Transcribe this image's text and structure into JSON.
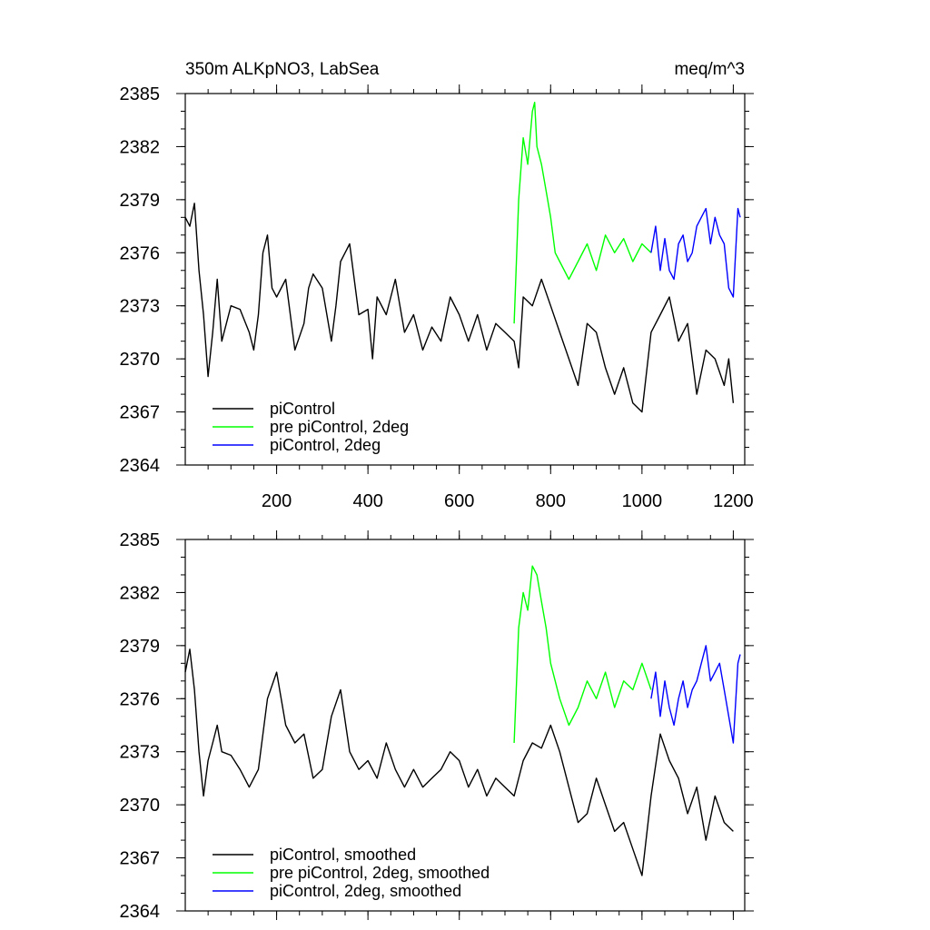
{
  "chart_data": [
    {
      "type": "line",
      "title": "350m ALKpNO3, LabSea",
      "units": "meq/m^3",
      "xlim": [
        0,
        1225
      ],
      "ylim": [
        2364,
        2385
      ],
      "xticks": [
        200,
        400,
        600,
        800,
        1000,
        1200
      ],
      "xtick_labels": [
        "200",
        "400",
        "600",
        "800",
        "1000",
        "1200"
      ],
      "yticks": [
        2364,
        2367,
        2370,
        2373,
        2376,
        2379,
        2382,
        2385
      ],
      "ytick_labels": [
        "2364",
        "2367",
        "2370",
        "2373",
        "2376",
        "2379",
        "2382",
        "2385"
      ],
      "grid": false,
      "legend_position": "bottom-left",
      "series": [
        {
          "name": "piControl",
          "color": "#000000",
          "x": [
            0,
            10,
            20,
            30,
            40,
            50,
            60,
            70,
            80,
            100,
            120,
            140,
            150,
            160,
            170,
            180,
            190,
            200,
            220,
            240,
            260,
            270,
            280,
            300,
            320,
            330,
            340,
            360,
            380,
            400,
            410,
            420,
            440,
            460,
            480,
            500,
            520,
            540,
            560,
            580,
            600,
            620,
            640,
            660,
            680,
            700,
            720,
            730,
            740,
            760,
            780,
            800,
            820,
            840,
            860,
            880,
            900,
            920,
            940,
            960,
            980,
            1000,
            1020,
            1040,
            1060,
            1080,
            1100,
            1120,
            1140,
            1160,
            1180,
            1190,
            1200
          ],
          "y": [
            2378.0,
            2377.5,
            2378.8,
            2375.0,
            2372.5,
            2369.0,
            2371.5,
            2374.5,
            2371.0,
            2373.0,
            2372.8,
            2371.5,
            2370.5,
            2372.5,
            2376.0,
            2377.0,
            2374.0,
            2373.5,
            2374.5,
            2370.5,
            2372.0,
            2374.0,
            2374.8,
            2374.0,
            2371.0,
            2373.0,
            2375.5,
            2376.5,
            2372.5,
            2372.8,
            2370.0,
            2373.5,
            2372.5,
            2374.5,
            2371.5,
            2372.5,
            2370.5,
            2371.8,
            2371.0,
            2373.5,
            2372.5,
            2371.0,
            2372.5,
            2370.5,
            2372.0,
            2371.5,
            2371.0,
            2369.5,
            2373.5,
            2373.0,
            2374.5,
            2373.0,
            2371.5,
            2370.0,
            2368.5,
            2372.0,
            2371.5,
            2369.5,
            2368.0,
            2369.5,
            2367.5,
            2367.0,
            2371.5,
            2372.5,
            2373.5,
            2371.0,
            2372.0,
            2368.0,
            2370.5,
            2370.0,
            2368.5,
            2370.0,
            2367.5
          ]
        },
        {
          "name": "pre piControl, 2deg",
          "color": "#00ff00",
          "x": [
            720,
            730,
            740,
            750,
            760,
            765,
            770,
            780,
            790,
            800,
            810,
            820,
            840,
            860,
            880,
            900,
            920,
            940,
            960,
            980,
            1000,
            1020
          ],
          "y": [
            2372.0,
            2379.0,
            2382.5,
            2381.0,
            2384.0,
            2384.5,
            2382.0,
            2381.0,
            2379.5,
            2378.0,
            2376.0,
            2375.5,
            2374.5,
            2375.5,
            2376.5,
            2375.0,
            2377.0,
            2376.0,
            2376.8,
            2375.5,
            2376.5,
            2376.0
          ]
        },
        {
          "name": "piControl, 2deg",
          "color": "#0000ff",
          "x": [
            1020,
            1030,
            1040,
            1050,
            1060,
            1070,
            1080,
            1090,
            1100,
            1110,
            1120,
            1130,
            1140,
            1150,
            1160,
            1170,
            1180,
            1190,
            1200,
            1210,
            1215
          ],
          "y": [
            2376.0,
            2377.5,
            2375.0,
            2376.8,
            2375.0,
            2374.5,
            2376.5,
            2377.0,
            2375.5,
            2376.0,
            2377.5,
            2378.0,
            2378.5,
            2376.5,
            2378.0,
            2377.0,
            2376.5,
            2374.0,
            2373.5,
            2378.5,
            2378.0
          ]
        }
      ]
    },
    {
      "type": "line",
      "title": "",
      "units": "",
      "xlim": [
        0,
        1225
      ],
      "ylim": [
        2364,
        2385
      ],
      "xticks": [
        200,
        400,
        600,
        800,
        1000,
        1200
      ],
      "xtick_labels": [],
      "yticks": [
        2364,
        2367,
        2370,
        2373,
        2376,
        2379,
        2382,
        2385
      ],
      "ytick_labels": [
        "2364",
        "2367",
        "2370",
        "2373",
        "2376",
        "2379",
        "2382",
        "2385"
      ],
      "grid": false,
      "legend_position": "bottom-left",
      "series": [
        {
          "name": "piControl, smoothed",
          "color": "#000000",
          "x": [
            0,
            10,
            20,
            30,
            40,
            50,
            60,
            70,
            80,
            100,
            120,
            140,
            160,
            180,
            200,
            220,
            240,
            260,
            280,
            300,
            320,
            340,
            360,
            380,
            400,
            420,
            440,
            460,
            480,
            500,
            520,
            540,
            560,
            580,
            600,
            620,
            640,
            660,
            680,
            700,
            720,
            740,
            760,
            780,
            800,
            820,
            840,
            860,
            880,
            900,
            920,
            940,
            960,
            980,
            1000,
            1020,
            1040,
            1060,
            1080,
            1100,
            1120,
            1140,
            1160,
            1180,
            1200
          ],
          "y": [
            2377.5,
            2378.8,
            2376.5,
            2373.0,
            2370.5,
            2372.5,
            2373.5,
            2374.5,
            2373.0,
            2372.8,
            2372.0,
            2371.0,
            2372.0,
            2376.0,
            2377.5,
            2374.5,
            2373.5,
            2374.0,
            2371.5,
            2372.0,
            2375.0,
            2376.5,
            2373.0,
            2372.0,
            2372.5,
            2371.5,
            2373.5,
            2372.0,
            2371.0,
            2372.0,
            2371.0,
            2371.5,
            2372.0,
            2373.0,
            2372.5,
            2371.0,
            2372.0,
            2370.5,
            2371.5,
            2371.0,
            2370.5,
            2372.5,
            2373.5,
            2373.2,
            2374.5,
            2373.0,
            2371.0,
            2369.0,
            2369.5,
            2371.5,
            2370.0,
            2368.5,
            2369.0,
            2367.5,
            2366.0,
            2370.5,
            2374.0,
            2372.5,
            2371.5,
            2369.5,
            2371.0,
            2368.0,
            2370.5,
            2369.0,
            2368.5
          ]
        },
        {
          "name": "pre piControl, 2deg, smoothed",
          "color": "#00ff00",
          "x": [
            720,
            730,
            740,
            750,
            760,
            770,
            780,
            790,
            800,
            810,
            820,
            840,
            860,
            880,
            900,
            920,
            940,
            960,
            980,
            1000,
            1020
          ],
          "y": [
            2373.5,
            2380.0,
            2382.0,
            2381.0,
            2383.5,
            2383.0,
            2381.5,
            2380.0,
            2378.0,
            2377.0,
            2376.0,
            2374.5,
            2375.5,
            2377.0,
            2376.0,
            2377.5,
            2375.5,
            2377.0,
            2376.5,
            2378.0,
            2376.5
          ]
        },
        {
          "name": "piControl, 2deg, smoothed",
          "color": "#0000ff",
          "x": [
            1020,
            1030,
            1040,
            1050,
            1060,
            1070,
            1080,
            1090,
            1100,
            1110,
            1120,
            1130,
            1140,
            1150,
            1160,
            1170,
            1180,
            1190,
            1200,
            1210,
            1215
          ],
          "y": [
            2376.0,
            2377.5,
            2375.0,
            2377.0,
            2375.5,
            2374.5,
            2376.0,
            2377.0,
            2375.5,
            2376.5,
            2377.0,
            2378.0,
            2379.0,
            2377.0,
            2377.5,
            2378.0,
            2376.5,
            2375.0,
            2373.5,
            2378.0,
            2378.5
          ]
        }
      ]
    }
  ]
}
